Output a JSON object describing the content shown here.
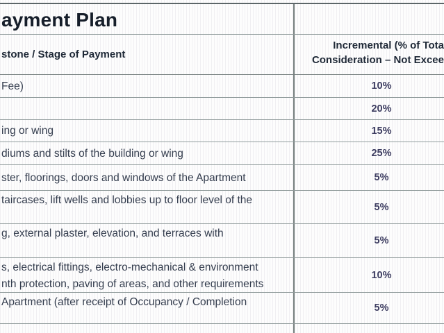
{
  "title": "ayment Plan",
  "header": {
    "milestone_label": "stone / Stage of Payment",
    "incremental_label_line1": "Incremental (% of Tota",
    "incremental_label_line2": "Consideration – Not Excee"
  },
  "rows": [
    {
      "stage": "Fee)",
      "percent": "10%"
    },
    {
      "stage": "",
      "percent": "20%"
    },
    {
      "stage": "ing or wing",
      "percent": "15%"
    },
    {
      "stage": "diums and stilts of the building or wing",
      "percent": "25%"
    },
    {
      "stage": "ster, floorings, doors and windows of the Apartment",
      "percent": "5%"
    },
    {
      "stage": "taircases, lift wells and lobbies up to floor level of the",
      "percent": "5%"
    },
    {
      "stage": "g, external plaster, elevation, and terraces with",
      "percent": "5%"
    },
    {
      "stage": "s, electrical fittings, electro-mechanical & environment",
      "stage_line2": "nth protection, paving of areas, and other requirements",
      "percent": "10%"
    },
    {
      "stage": "Apartment (after receipt of Occupancy / Completion",
      "percent": "5%"
    }
  ],
  "colors": {
    "border_color": "#909b9b",
    "border_dark": "#5c6668",
    "border_medium": "#76807f",
    "text_color": "#343d4e",
    "percent_color": "#3c3c60",
    "title_color": "#161e2a",
    "header_color": "#1e2836"
  }
}
